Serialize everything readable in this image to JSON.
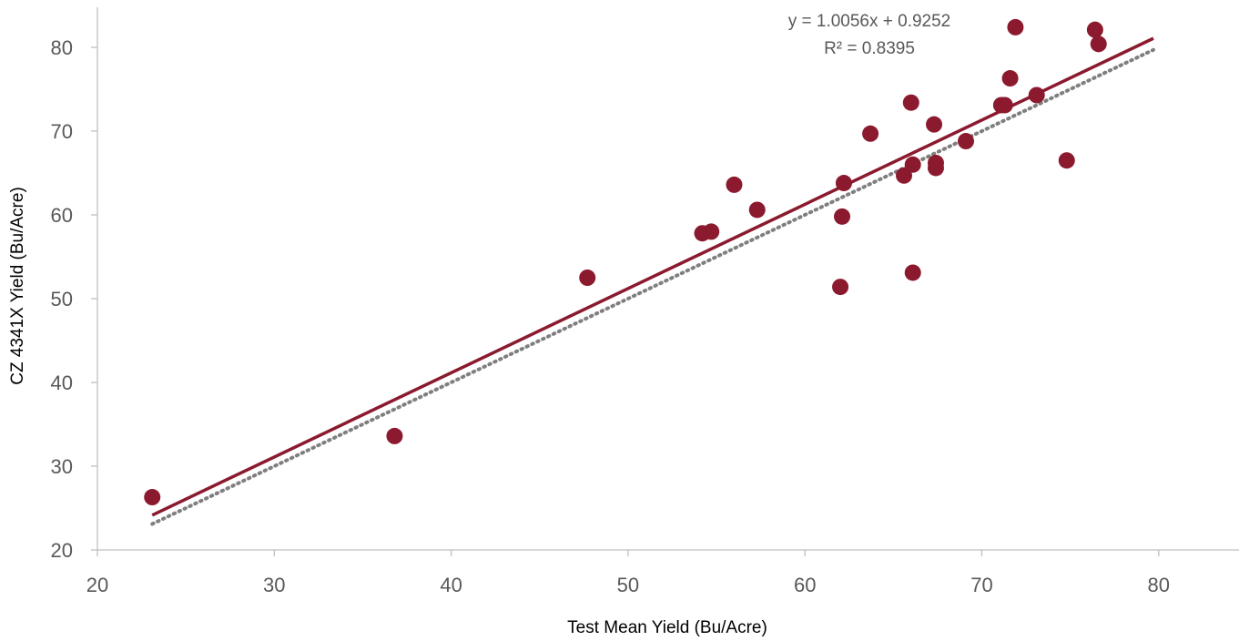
{
  "chart_data": {
    "type": "scatter",
    "xlabel": "Test Mean Yield (Bu/Acre)",
    "ylabel": "CZ 4341X Yield (Bu/Acre)",
    "xlim": [
      20,
      85
    ],
    "ylim": [
      20,
      85
    ],
    "x_ticks": [
      20,
      30,
      40,
      50,
      60,
      70,
      80
    ],
    "y_ticks": [
      20,
      30,
      40,
      50,
      60,
      70,
      80
    ],
    "grid": false,
    "legend": "none",
    "marker_color": "#8b1a2e",
    "series": [
      {
        "points": [
          {
            "x": 23.1,
            "y": 26.3
          },
          {
            "x": 36.8,
            "y": 33.6
          },
          {
            "x": 47.7,
            "y": 52.5
          },
          {
            "x": 54.2,
            "y": 57.8
          },
          {
            "x": 54.7,
            "y": 58.0
          },
          {
            "x": 56.0,
            "y": 63.6
          },
          {
            "x": 57.3,
            "y": 60.6
          },
          {
            "x": 62.0,
            "y": 51.4
          },
          {
            "x": 62.1,
            "y": 59.8
          },
          {
            "x": 62.2,
            "y": 63.8
          },
          {
            "x": 63.7,
            "y": 69.7
          },
          {
            "x": 65.6,
            "y": 64.7
          },
          {
            "x": 66.0,
            "y": 73.4
          },
          {
            "x": 66.1,
            "y": 53.1
          },
          {
            "x": 66.1,
            "y": 66.0
          },
          {
            "x": 67.3,
            "y": 70.8
          },
          {
            "x": 67.4,
            "y": 65.6
          },
          {
            "x": 67.4,
            "y": 66.2
          },
          {
            "x": 69.1,
            "y": 68.8
          },
          {
            "x": 71.1,
            "y": 73.1
          },
          {
            "x": 71.3,
            "y": 73.1
          },
          {
            "x": 71.6,
            "y": 76.3
          },
          {
            "x": 71.9,
            "y": 82.4
          },
          {
            "x": 73.1,
            "y": 74.3
          },
          {
            "x": 74.8,
            "y": 66.5
          },
          {
            "x": 76.4,
            "y": 82.1
          },
          {
            "x": 76.6,
            "y": 80.4
          }
        ]
      }
    ],
    "trendline": {
      "slope": 1.0056,
      "intercept": 0.9252,
      "x_range": [
        23.1,
        79.7
      ],
      "color": "#8b1a2e",
      "equation": "y = 1.0056x + 0.9252",
      "r_squared": "R² = 0.8395"
    },
    "reference_line": {
      "slope": 1,
      "intercept": 0,
      "x_range": [
        23.1,
        79.7
      ],
      "color": "#7f7f7f",
      "style": "dotted"
    }
  }
}
